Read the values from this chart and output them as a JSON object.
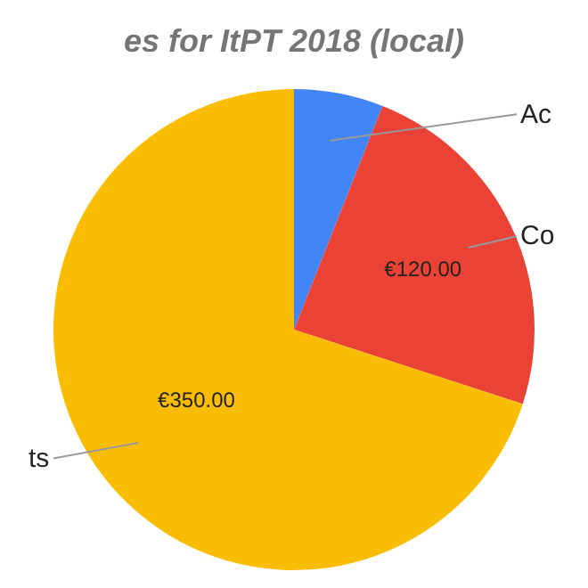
{
  "chart_data": {
    "type": "pie",
    "title": "es for ItPT 2018 (local)",
    "categories": [
      "Ac",
      "Co",
      "ts"
    ],
    "values": [
      30,
      120,
      350
    ],
    "colors": [
      "#4285f4",
      "#ea4335",
      "#fbbc04"
    ],
    "value_labels": [
      null,
      "€120.00",
      "€350.00"
    ]
  }
}
